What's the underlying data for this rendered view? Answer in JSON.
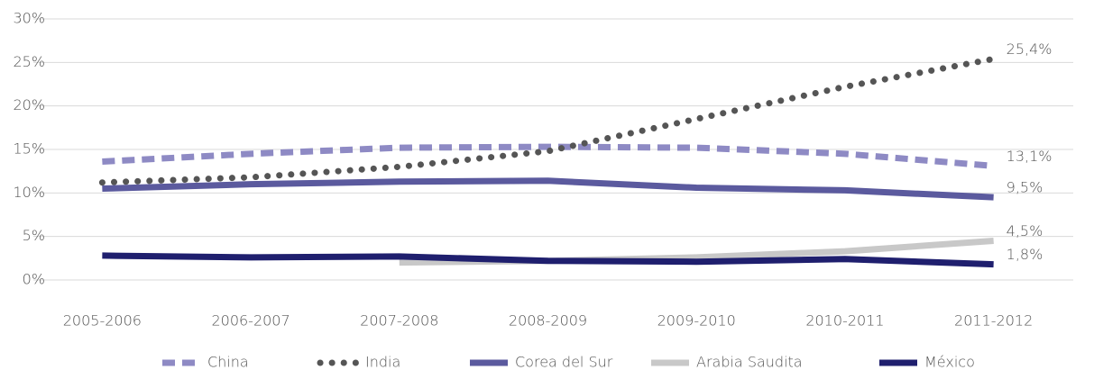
{
  "chart_data": {
    "type": "line",
    "categories": [
      "2005-2006",
      "2006-2007",
      "2007-2008",
      "2008-2009",
      "2009-2010",
      "2010-2011",
      "2011-2012"
    ],
    "ylim": [
      0,
      30
    ],
    "yticks": [
      {
        "value": 0,
        "label": "0%"
      },
      {
        "value": 5,
        "label": "5%"
      },
      {
        "value": 10,
        "label": "10%"
      },
      {
        "value": 15,
        "label": "15%"
      },
      {
        "value": 20,
        "label": "20%"
      },
      {
        "value": 25,
        "label": "25%"
      },
      {
        "value": 30,
        "label": "30%"
      }
    ],
    "grid": true,
    "legend": "bottom",
    "series": [
      {
        "name": "China",
        "color": "#8e8ac4",
        "style": "dashed",
        "values": [
          13.6,
          14.5,
          15.2,
          15.3,
          15.2,
          14.5,
          13.1
        ],
        "value_labels": [
          null,
          null,
          null,
          null,
          null,
          null,
          "13,1%"
        ]
      },
      {
        "name": "India",
        "color": "#555555",
        "style": "dotted",
        "values": [
          11.2,
          11.8,
          13.0,
          14.8,
          18.5,
          22.2,
          25.4
        ],
        "value_labels": [
          null,
          null,
          null,
          null,
          null,
          null,
          "25,4%"
        ]
      },
      {
        "name": "Corea del Sur",
        "color": "#5b5a9e",
        "style": "solid",
        "values": [
          10.5,
          11.0,
          11.3,
          11.4,
          10.6,
          10.3,
          9.5
        ],
        "value_labels": [
          null,
          null,
          null,
          null,
          null,
          null,
          "9,5%"
        ]
      },
      {
        "name": "Arabia Saudita",
        "color": "#c8c8c8",
        "style": "solid",
        "values": [
          null,
          null,
          2.0,
          2.2,
          2.6,
          3.3,
          4.5
        ],
        "value_labels": [
          null,
          null,
          null,
          null,
          null,
          null,
          "4,5%"
        ]
      },
      {
        "name": "México",
        "color": "#1f1f6e",
        "style": "solid",
        "values": [
          2.8,
          2.6,
          2.7,
          2.2,
          2.1,
          2.4,
          1.8
        ],
        "value_labels": [
          null,
          null,
          null,
          null,
          null,
          null,
          "1,8%"
        ]
      }
    ]
  }
}
